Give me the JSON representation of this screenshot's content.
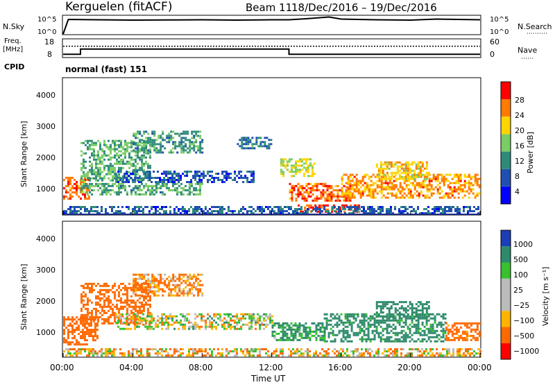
{
  "header": {
    "title": "Kerguelen (fitACF)",
    "beam": "Beam 11",
    "date_range": "18/Dec/2016 – 19/Dec/2016"
  },
  "nsky_panel": {
    "left_label": "N.Sky",
    "right_label": "N.Search",
    "tick_top": "10^5",
    "tick_bottom": "10^0"
  },
  "freq_panel": {
    "left_label_line1": "Freq.",
    "left_label_line2": "[MHz]",
    "left_tick_top": "18",
    "left_tick_bottom": "8",
    "right_tick_top": "60",
    "right_tick_bottom": "0",
    "right_label": "Nave"
  },
  "cpid": {
    "label": "CPID",
    "mode": "normal (fast) 151"
  },
  "power_panel": {
    "ylabel": "Slant Range [km]",
    "yticks": [
      "1000",
      "2000",
      "3000",
      "4000"
    ],
    "colorbar_label": "Power [dB]",
    "colorbar_ticks": [
      "4",
      "8",
      "12",
      "16",
      "20",
      "24",
      "28"
    ],
    "colorbar_colors": [
      "#0000ff",
      "#1f4fb0",
      "#2e8b7a",
      "#7acc66",
      "#ffd400",
      "#ff7a00",
      "#ff0000"
    ]
  },
  "velocity_panel": {
    "ylabel": "Slant Range [km]",
    "yticks": [
      "1000",
      "2000",
      "3000",
      "4000"
    ],
    "colorbar_label": "Velocity [m s⁻¹]",
    "colorbar_ticks": [
      "1000",
      "500",
      "100",
      "25",
      "−25",
      "−100",
      "−500",
      "−1000"
    ],
    "colorbar_colors": [
      "#1c3fb8",
      "#2d8a6a",
      "#38c030",
      "#bbbbbb",
      "#bbbbbb",
      "#ffb300",
      "#ff6a00",
      "#ff0000"
    ]
  },
  "xaxis": {
    "label": "Time UT",
    "ticks": [
      "00:00",
      "04:00",
      "08:00",
      "12:00",
      "16:00",
      "20:00",
      "00:00"
    ]
  },
  "chart_data": [
    {
      "type": "line",
      "name_label": "N.Sky",
      "x_hours": [
        0,
        0.3,
        2,
        4,
        6,
        8,
        10,
        12,
        13,
        14,
        15.3,
        16,
        18,
        20,
        21.5,
        24
      ],
      "values_log10": [
        0,
        4.2,
        4.1,
        4.0,
        4.05,
        4.1,
        4.0,
        4.1,
        4.1,
        4.4,
        4.9,
        4.3,
        4.1,
        4.0,
        4.3,
        4.1
      ],
      "ylim_log10": [
        0,
        5
      ]
    },
    {
      "type": "line",
      "name_label": "Freq. [MHz]",
      "x_hours": [
        0,
        1,
        1,
        13,
        13,
        24
      ],
      "values": [
        9.5,
        9.5,
        12.5,
        12.5,
        9.5,
        9.5
      ],
      "ylim": [
        8,
        18
      ],
      "nave_dotted_level": 37,
      "nave_ylim": [
        0,
        60
      ]
    },
    {
      "type": "heatmap",
      "quantity": "Power [dB]",
      "xlim_hours": [
        0,
        24
      ],
      "ylim_km": [
        180,
        4600
      ],
      "clim_db": [
        0,
        32
      ],
      "regions": [
        {
          "t0": 0,
          "t1": 1.5,
          "r0": 700,
          "r1": 1400,
          "v": 26
        },
        {
          "t0": 1,
          "t1": 5,
          "r0": 1300,
          "r1": 2600,
          "v": 14
        },
        {
          "t0": 3,
          "t1": 11,
          "r0": 1200,
          "r1": 1600,
          "v": 7
        },
        {
          "t0": 1,
          "t1": 8,
          "r0": 800,
          "r1": 1200,
          "v": 13
        },
        {
          "t0": 4,
          "t1": 8,
          "r0": 2200,
          "r1": 2900,
          "v": 12
        },
        {
          "t0": 10,
          "t1": 12,
          "r0": 2300,
          "r1": 2700,
          "v": 10
        },
        {
          "t0": 12.5,
          "t1": 14.5,
          "r0": 1400,
          "r1": 2000,
          "v": 19
        },
        {
          "t0": 13,
          "t1": 16.5,
          "r0": 600,
          "r1": 1200,
          "v": 26
        },
        {
          "t0": 13.5,
          "t1": 17,
          "r0": 250,
          "r1": 500,
          "v": 29
        },
        {
          "t0": 16,
          "t1": 24,
          "r0": 700,
          "r1": 1500,
          "v": 24
        },
        {
          "t0": 18,
          "t1": 21,
          "r0": 1300,
          "r1": 1900,
          "v": 21
        },
        {
          "t0": 0,
          "t1": 24,
          "r0": 200,
          "r1": 450,
          "v": 8
        }
      ]
    },
    {
      "type": "heatmap",
      "quantity": "Velocity [m s-1]",
      "xlim_hours": [
        0,
        24
      ],
      "ylim_km": [
        180,
        4600
      ],
      "clim_ms": [
        -1000,
        1000
      ],
      "regions": [
        {
          "t0": 0,
          "t1": 2,
          "r0": 600,
          "r1": 1500,
          "v": -300
        },
        {
          "t0": 1,
          "t1": 5,
          "r0": 1300,
          "r1": 2600,
          "v": -250
        },
        {
          "t0": 4,
          "t1": 8,
          "r0": 2200,
          "r1": 2900,
          "v": -120
        },
        {
          "t0": 3,
          "t1": 12,
          "r0": 1100,
          "r1": 1600,
          "v": 0
        },
        {
          "t0": 12,
          "t1": 15,
          "r0": 700,
          "r1": 1300,
          "v": 150
        },
        {
          "t0": 15,
          "t1": 22,
          "r0": 700,
          "r1": 1600,
          "v": 200
        },
        {
          "t0": 18,
          "t1": 21,
          "r0": 1500,
          "r1": 2000,
          "v": 300
        },
        {
          "t0": 22,
          "t1": 24,
          "r0": 700,
          "r1": 1300,
          "v": -200
        },
        {
          "t0": 0,
          "t1": 24,
          "r0": 200,
          "r1": 450,
          "v": -60
        }
      ]
    }
  ]
}
